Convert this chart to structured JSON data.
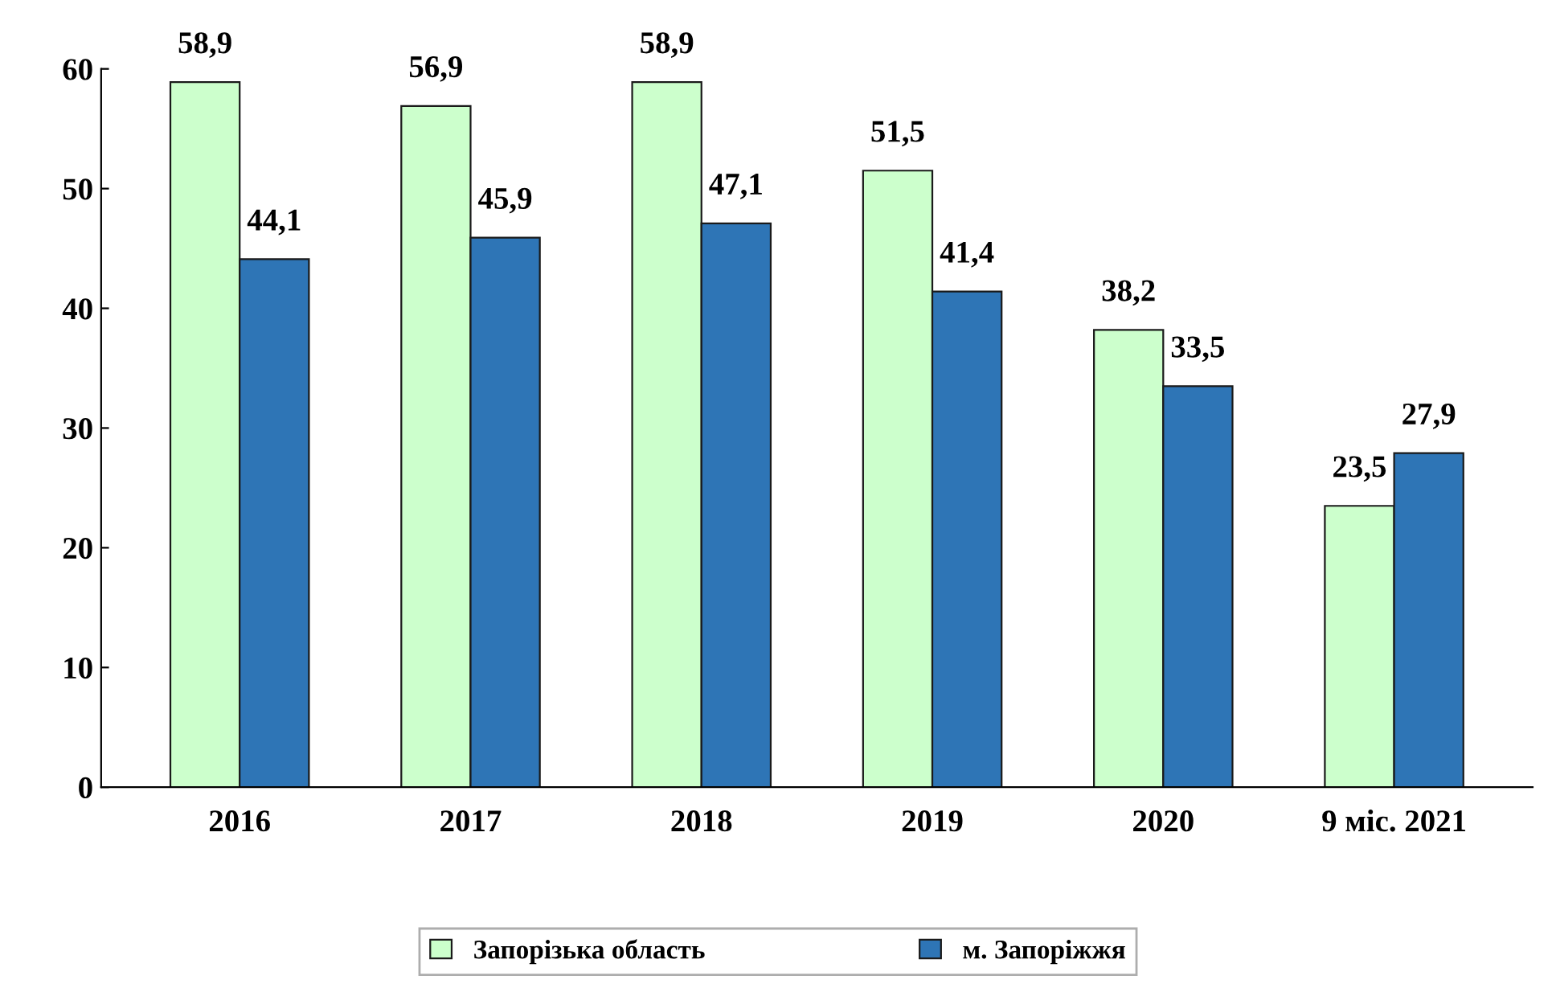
{
  "chart_data": {
    "type": "bar",
    "categories": [
      "2016",
      "2017",
      "2018",
      "2019",
      "2020",
      "9 міс. 2021"
    ],
    "series": [
      {
        "name": "Запорізька область",
        "color": "#ccffcc",
        "values": [
          58.9,
          56.9,
          58.9,
          51.5,
          38.2,
          23.5
        ],
        "value_labels": [
          "58,9",
          "56,9",
          "58,9",
          "51,5",
          "38,2",
          "23,5"
        ]
      },
      {
        "name": "м. Запоріжжя",
        "color": "#2e75b6",
        "values": [
          44.1,
          45.9,
          47.1,
          41.4,
          33.5,
          27.9
        ],
        "value_labels": [
          "44,1",
          "45,9",
          "47,1",
          "41,4",
          "33,5",
          "27,9"
        ]
      }
    ],
    "ylim": [
      0,
      60
    ],
    "yticks": [
      0,
      10,
      20,
      30,
      40,
      50,
      60
    ],
    "grid": false,
    "legend": "bottom"
  }
}
